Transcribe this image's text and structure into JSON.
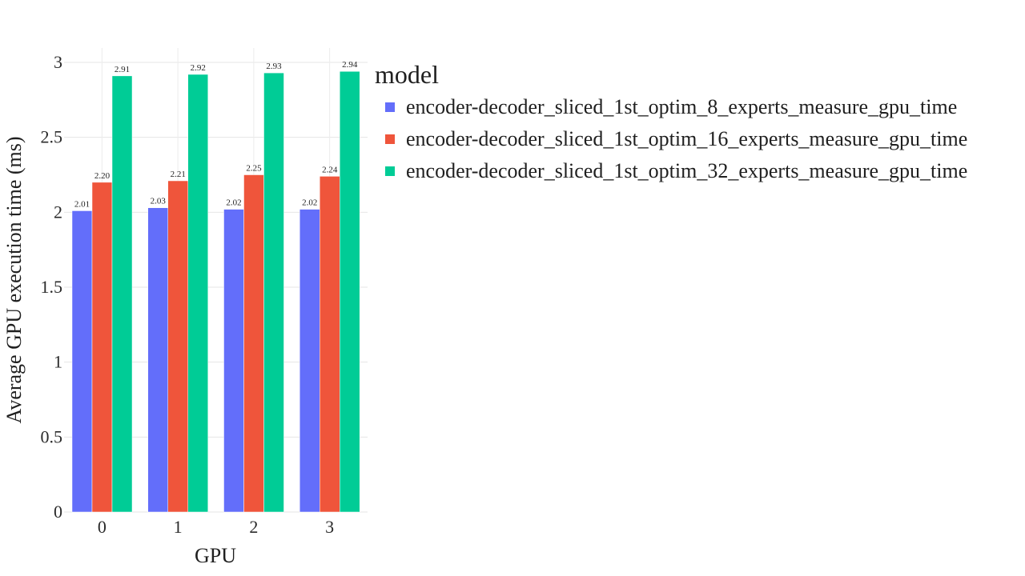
{
  "chart_data": {
    "type": "bar",
    "categories": [
      "0",
      "1",
      "2",
      "3"
    ],
    "xlabel": "GPU",
    "ylabel": "Average GPU execution time (ms)",
    "ylim": [
      0,
      3.1
    ],
    "yticks": [
      "0",
      "0.5",
      "1",
      "1.5",
      "2",
      "2.5",
      "3"
    ],
    "grid": true,
    "legend_title": "model",
    "legend_position": "right",
    "series": [
      {
        "name": "encoder-decoder_sliced_1st_optim_8_experts_measure_gpu_time",
        "color": "#636efa",
        "values": [
          2.01,
          2.03,
          2.02,
          2.02
        ],
        "labels": [
          "2.01",
          "2.03",
          "2.02",
          "2.02"
        ]
      },
      {
        "name": "encoder-decoder_sliced_1st_optim_16_experts_measure_gpu_time",
        "color": "#ef553b",
        "values": [
          2.2,
          2.21,
          2.25,
          2.24
        ],
        "labels": [
          "2.20",
          "2.21",
          "2.25",
          "2.24"
        ]
      },
      {
        "name": "encoder-decoder_sliced_1st_optim_32_experts_measure_gpu_time",
        "color": "#00cc96",
        "values": [
          2.91,
          2.92,
          2.93,
          2.94
        ],
        "labels": [
          "2.91",
          "2.92",
          "2.93",
          "2.94"
        ]
      }
    ]
  }
}
